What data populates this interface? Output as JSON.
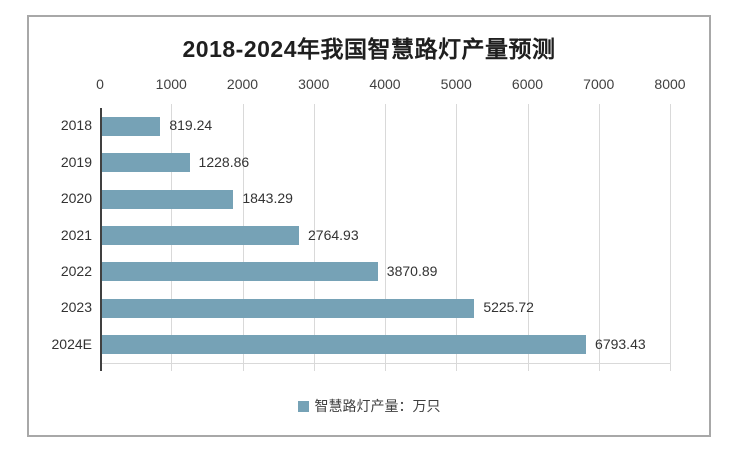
{
  "window": {
    "background": "#ffffff",
    "frame_border_color": "#a8a8a8"
  },
  "chart_data": {
    "type": "bar",
    "orientation": "horizontal",
    "title": "2018-2024年我国智慧路灯产量预测",
    "categories": [
      "2018",
      "2019",
      "2020",
      "2021",
      "2022",
      "2023",
      "2024E"
    ],
    "values": [
      819.24,
      1228.86,
      1843.29,
      2764.93,
      3870.89,
      5225.72,
      6793.43
    ],
    "value_labels": [
      "819.24",
      "1228.86",
      "1843.29",
      "2764.93",
      "3870.89",
      "5225.72",
      "6793.43"
    ],
    "series_name": "智慧路灯产量：万只",
    "xlabel": "",
    "ylabel": "",
    "x_axis": {
      "position": "top",
      "min": 0,
      "max": 8000,
      "tick_interval": 1000,
      "tick_labels": [
        "0",
        "1000",
        "2000",
        "3000",
        "4000",
        "5000",
        "6000",
        "7000",
        "8000"
      ]
    },
    "grid": true,
    "legend_position": "bottom",
    "colors": {
      "bar": "#76a2b6",
      "gridline": "#d9d9d9",
      "axis_line": "#404040",
      "title_text": "#1f1f1f",
      "label_text": "#404040",
      "value_text": "#333333"
    }
  }
}
